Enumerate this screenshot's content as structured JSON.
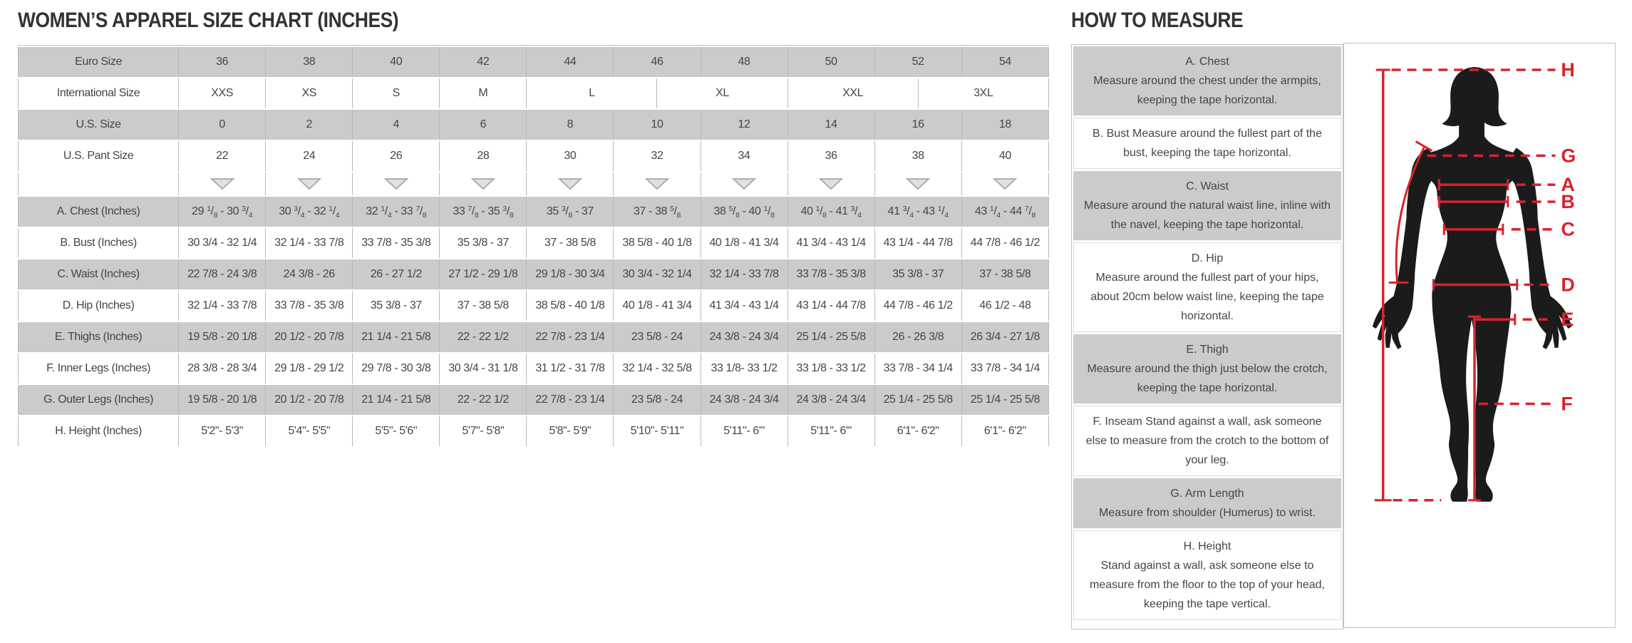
{
  "size_chart": {
    "title": "WOMEN’S APPAREL SIZE CHART (INCHES)",
    "header_rows": [
      {
        "label": "Euro Size",
        "shaded": true,
        "cells": [
          {
            "value": "36",
            "span": 2
          },
          {
            "value": "38",
            "span": 2
          },
          {
            "value": "40",
            "span": 2
          },
          {
            "value": "42",
            "span": 2
          },
          {
            "value": "44",
            "span": 2
          },
          {
            "value": "46",
            "span": 2
          },
          {
            "value": "48",
            "span": 2
          },
          {
            "value": "50",
            "span": 2
          },
          {
            "value": "52",
            "span": 2
          },
          {
            "value": "54",
            "span": 2
          }
        ]
      },
      {
        "label": "International Size",
        "shaded": false,
        "cells": [
          {
            "value": "XXS",
            "span": 2
          },
          {
            "value": "XS",
            "span": 2
          },
          {
            "value": "S",
            "span": 2
          },
          {
            "value": "M",
            "span": 2
          },
          {
            "value": "L",
            "span": 3
          },
          {
            "value": "XL",
            "span": 3
          },
          {
            "value": "XXL",
            "span": 3
          },
          {
            "value": "3XL",
            "span": 3
          }
        ]
      },
      {
        "label": "U.S. Size",
        "shaded": true,
        "cells": [
          {
            "value": "0",
            "span": 2
          },
          {
            "value": "2",
            "span": 2
          },
          {
            "value": "4",
            "span": 2
          },
          {
            "value": "6",
            "span": 2
          },
          {
            "value": "8",
            "span": 2
          },
          {
            "value": "10",
            "span": 2
          },
          {
            "value": "12",
            "span": 2
          },
          {
            "value": "14",
            "span": 2
          },
          {
            "value": "16",
            "span": 2
          },
          {
            "value": "18",
            "span": 2
          }
        ]
      },
      {
        "label": "U.S. Pant Size",
        "shaded": false,
        "cells": [
          {
            "value": "22",
            "span": 2
          },
          {
            "value": "24",
            "span": 2
          },
          {
            "value": "26",
            "span": 2
          },
          {
            "value": "28",
            "span": 2
          },
          {
            "value": "30",
            "span": 2
          },
          {
            "value": "32",
            "span": 2
          },
          {
            "value": "34",
            "span": 2
          },
          {
            "value": "36",
            "span": 2
          },
          {
            "value": "38",
            "span": 2
          },
          {
            "value": "40",
            "span": 2
          }
        ]
      }
    ],
    "arrow_row": {
      "icon": "triangle-down-icon",
      "count": 10
    },
    "measurement_rows": [
      {
        "label": "A. Chest (Inches)",
        "shaded": true,
        "superscript_fractions": true,
        "values": [
          "29 1/8 - 30 3/4",
          "30 3/4 - 32 1/4",
          "32 1/4 - 33 7/8",
          "33 7/8 - 35 3/8",
          "35 3/8 - 37",
          "37 - 38 5/8",
          "38 5/8 - 40 1/8",
          "40 1/8 - 41 3/4",
          "41 3/4 - 43 1/4",
          "43 1/4 - 44 7/8"
        ]
      },
      {
        "label": "B. Bust (Inches)",
        "shaded": false,
        "superscript_fractions": false,
        "values": [
          "30 3/4 - 32 1/4",
          "32 1/4 - 33 7/8",
          "33 7/8 - 35 3/8",
          "35 3/8 - 37",
          "37 - 38 5/8",
          "38 5/8 - 40 1/8",
          "40 1/8 - 41 3/4",
          "41 3/4 - 43 1/4",
          "43 1/4 - 44 7/8",
          "44 7/8 - 46 1/2"
        ]
      },
      {
        "label": "C. Waist (Inches)",
        "shaded": true,
        "superscript_fractions": false,
        "values": [
          "22 7/8 - 24 3/8",
          "24 3/8 - 26",
          "26 - 27 1/2",
          "27 1/2 - 29 1/8",
          "29 1/8 - 30 3/4",
          "30 3/4 - 32 1/4",
          "32 1/4 - 33 7/8",
          "33 7/8 - 35 3/8",
          "35 3/8 - 37",
          "37 - 38 5/8"
        ]
      },
      {
        "label": "D. Hip (Inches)",
        "shaded": false,
        "superscript_fractions": false,
        "values": [
          "32 1/4 - 33 7/8",
          "33 7/8 - 35 3/8",
          "35 3/8 - 37",
          "37 - 38 5/8",
          "38 5/8 - 40 1/8",
          "40 1/8 - 41 3/4",
          "41 3/4 - 43 1/4",
          "43 1/4 - 44 7/8",
          "44 7/8 - 46 1/2",
          "46 1/2 - 48"
        ]
      },
      {
        "label": "E. Thighs (Inches)",
        "shaded": true,
        "superscript_fractions": false,
        "values": [
          "19 5/8 - 20 1/8",
          "20 1/2 - 20 7/8",
          "21 1/4 - 21 5/8",
          "22 - 22 1/2",
          "22 7/8 - 23 1/4",
          "23 5/8 - 24",
          "24 3/8 - 24 3/4",
          "25 1/4 - 25 5/8",
          "26 - 26 3/8",
          "26 3/4 - 27 1/8"
        ]
      },
      {
        "label": "F. Inner Legs (Inches)",
        "shaded": false,
        "superscript_fractions": false,
        "values": [
          "28 3/8 - 28 3/4",
          "29 1/8 - 29 1/2",
          "29 7/8 - 30 3/8",
          "30 3/4 - 31 1/8",
          "31 1/2 - 31 7/8",
          "32 1/4 - 32 5/8",
          "33 1/8- 33 1/2",
          "33 1/8 - 33 1/2",
          "33 7/8 - 34 1/4",
          "33 7/8 - 34 1/4"
        ]
      },
      {
        "label": "G. Outer Legs (Inches)",
        "shaded": true,
        "superscript_fractions": false,
        "values": [
          "19 5/8 - 20 1/8",
          "20 1/2 - 20 7/8",
          "21 1/4 - 21 5/8",
          "22 - 22 1/2",
          "22 7/8 - 23 1/4",
          "23 5/8 - 24",
          "24 3/8 - 24 3/4",
          "24 3/8 - 24 3/4",
          "25 1/4 - 25 5/8",
          "25 1/4 - 25 5/8"
        ]
      },
      {
        "label": "H. Height (Inches)",
        "shaded": false,
        "superscript_fractions": false,
        "values": [
          "5'2\"- 5'3\"",
          "5'4\"- 5'5\"",
          "5'5\"- 5'6\"",
          "5'7\"- 5'8\"",
          "5'8\"- 5'9\"",
          "5'10\"- 5'11\"",
          "5'11\"- 6'\"",
          "5'11\"- 6'\"",
          "6'1\"- 6'2\"",
          "6'1\"- 6'2\""
        ]
      }
    ]
  },
  "how_to_measure": {
    "title": "HOW TO MEASURE",
    "sections": [
      {
        "heading": "A. Chest",
        "heading_inline": false,
        "shaded": true,
        "body": "Measure around the chest under the armpits, keeping the tape horizontal."
      },
      {
        "heading": "B. Bust",
        "heading_inline": true,
        "shaded": false,
        "body": "Measure around the fullest part of the bust, keeping the tape horizontal."
      },
      {
        "heading": "C. Waist",
        "heading_inline": false,
        "shaded": true,
        "body": "Measure around the natural waist line, inline with the navel, keeping the tape horizontal."
      },
      {
        "heading": "D. Hip",
        "heading_inline": false,
        "shaded": false,
        "body": "Measure around the fullest part of your hips, about 20cm below waist line, keeping the tape horizontal."
      },
      {
        "heading": "E. Thigh",
        "heading_inline": false,
        "shaded": true,
        "body": "Measure around the thigh just below the crotch, keeping the tape horizontal."
      },
      {
        "heading": "F. Inseam",
        "heading_inline": true,
        "shaded": false,
        "body": "Stand against a wall, ask someone else to measure from the crotch to the bottom of your leg."
      },
      {
        "heading": "G. Arm Length",
        "heading_inline": false,
        "shaded": true,
        "body": "Measure from shoulder (Humerus) to wrist."
      },
      {
        "heading": "H. Height",
        "heading_inline": false,
        "shaded": false,
        "body": "Stand against a wall, ask someone else to measure from the floor to the top of your head, keeping the tape vertical."
      }
    ],
    "figure": {
      "letters": {
        "h": "H",
        "g": "G",
        "a": "A",
        "b": "B",
        "c": "C",
        "d": "D",
        "e": "E",
        "f": "F"
      },
      "silhouette": "female-body-silhouette",
      "line_color": "#d8232a",
      "silhouette_color": "#1b1b1b"
    }
  },
  "colors": {
    "row_shade": "#cbcbcb",
    "grid_line": "#b9b9b9",
    "text": "#454545",
    "title_text": "#333333",
    "accent_red": "#d8232a"
  }
}
